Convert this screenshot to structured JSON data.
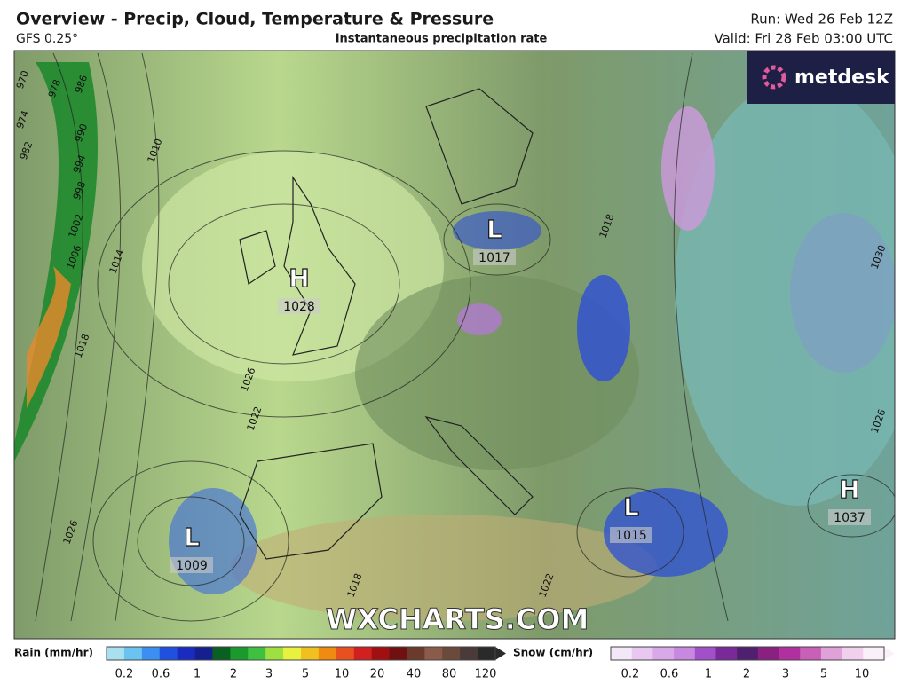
{
  "header": {
    "title": "Overview - Precip, Cloud, Temperature & Pressure",
    "model": "GFS 0.25°",
    "subtitle": "Instantaneous precipitation rate",
    "run": "Run: Wed 26 Feb 12Z",
    "valid": "Valid: Fri 28 Feb 03:00 UTC"
  },
  "logo": "metdesk",
  "watermark": "WXCHARTS.COM",
  "pressure_centers": [
    {
      "type": "H",
      "value": 1028
    },
    {
      "type": "L",
      "value": 1017
    },
    {
      "type": "L",
      "value": 1009
    },
    {
      "type": "L",
      "value": 1015
    },
    {
      "type": "H",
      "value": 1037
    }
  ],
  "isobar_labels": [
    970,
    974,
    982,
    978,
    986,
    990,
    994,
    998,
    1002,
    1006,
    1010,
    1014,
    1018,
    1026,
    1022,
    1026,
    1018,
    1022,
    1018,
    1030,
    1026
  ],
  "legend": {
    "rain": {
      "label": "Rain (mm/hr)",
      "ticks": [
        0.2,
        0.6,
        1,
        2,
        3,
        5,
        10,
        20,
        40,
        80,
        120
      ]
    },
    "snow": {
      "label": "Snow (cm/hr)",
      "ticks": [
        0.2,
        0.6,
        1,
        2,
        3,
        5,
        10
      ]
    }
  }
}
